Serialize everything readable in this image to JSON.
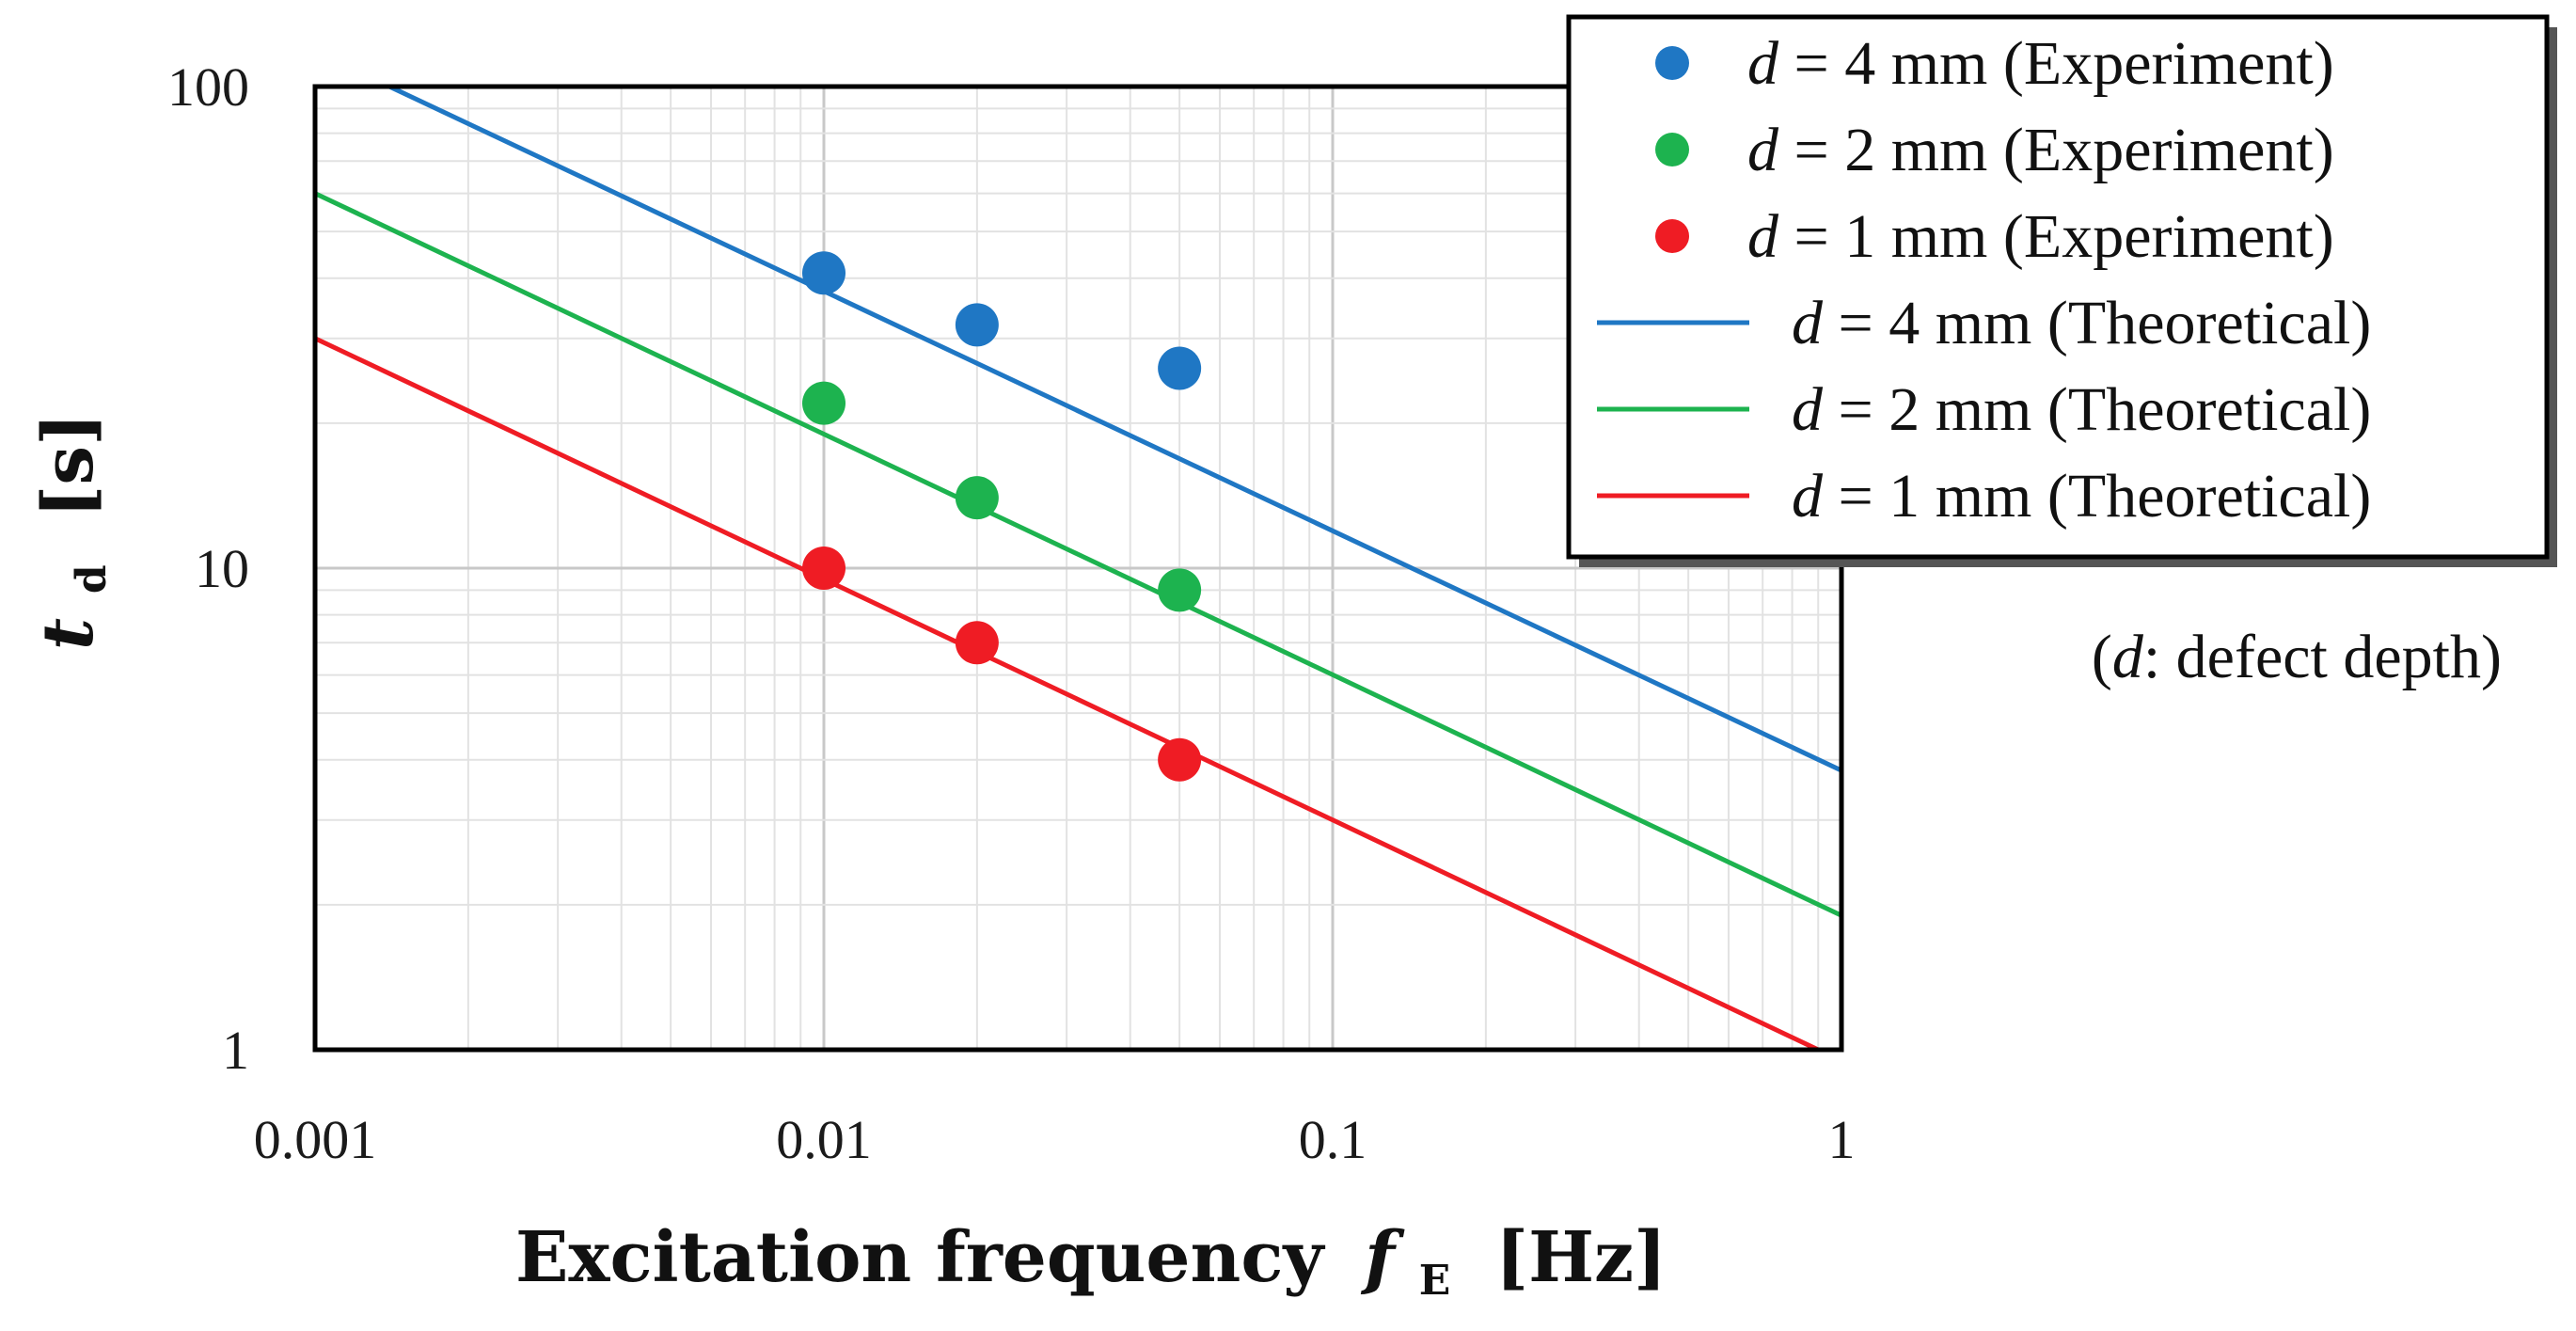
{
  "chart_data": {
    "type": "scatter",
    "x_scale": "log",
    "y_scale": "log",
    "xlim": [
      0.001,
      1
    ],
    "ylim": [
      1,
      100
    ],
    "grid": true,
    "x_ticks": [
      {
        "value": 0.001,
        "label": "0.001"
      },
      {
        "value": 0.01,
        "label": "0.01"
      },
      {
        "value": 0.1,
        "label": "0.1"
      },
      {
        "value": 1,
        "label": "1"
      }
    ],
    "y_ticks": [
      {
        "value": 1,
        "label": "1"
      },
      {
        "value": 10,
        "label": "10"
      },
      {
        "value": 100,
        "label": "100"
      }
    ],
    "xlabel": {
      "main": "Excitation frequency",
      "var": "f",
      "sub": "E",
      "unit": "[Hz]"
    },
    "ylabel": {
      "var": "t",
      "sub": "d",
      "unit": "[s]"
    },
    "legend_position": "top-right",
    "note": {
      "open": "(",
      "var": "d",
      "text": ": defect depth)"
    },
    "series": [
      {
        "name": "d = 4 mm (Experiment)",
        "var": "d",
        "label": " = 4 mm (Experiment)",
        "kind": "points",
        "color": "#1f77c4",
        "points": [
          {
            "x": 0.01,
            "y": 41
          },
          {
            "x": 0.02,
            "y": 32
          },
          {
            "x": 0.05,
            "y": 26
          }
        ]
      },
      {
        "name": "d = 2 mm (Experiment)",
        "var": "d",
        "label": " = 2 mm (Experiment)",
        "kind": "points",
        "color": "#1db34f",
        "points": [
          {
            "x": 0.01,
            "y": 22
          },
          {
            "x": 0.02,
            "y": 14
          },
          {
            "x": 0.05,
            "y": 9
          }
        ]
      },
      {
        "name": "d = 1 mm (Experiment)",
        "var": "d",
        "label": " = 1 mm (Experiment)",
        "kind": "points",
        "color": "#ef1c24",
        "points": [
          {
            "x": 0.01,
            "y": 10
          },
          {
            "x": 0.02,
            "y": 7
          },
          {
            "x": 0.05,
            "y": 4
          }
        ]
      },
      {
        "name": "d = 4 mm (Theoretical)",
        "var": "d",
        "label": " = 4 mm (Theoretical)",
        "kind": "line",
        "color": "#1f77c4",
        "points": [
          {
            "x": 0.0014,
            "y": 100
          },
          {
            "x": 1,
            "y": 3.8
          }
        ]
      },
      {
        "name": "d = 2 mm (Theoretical)",
        "var": "d",
        "label": " = 2 mm (Theoretical)",
        "kind": "line",
        "color": "#1db34f",
        "points": [
          {
            "x": 0.001,
            "y": 60
          },
          {
            "x": 1,
            "y": 1.9
          }
        ]
      },
      {
        "name": "d = 1 mm (Theoretical)",
        "var": "d",
        "label": " = 1 mm (Theoretical)",
        "kind": "line",
        "color": "#ef1c24",
        "points": [
          {
            "x": 0.001,
            "y": 30
          },
          {
            "x": 0.9,
            "y": 1
          }
        ]
      }
    ]
  }
}
